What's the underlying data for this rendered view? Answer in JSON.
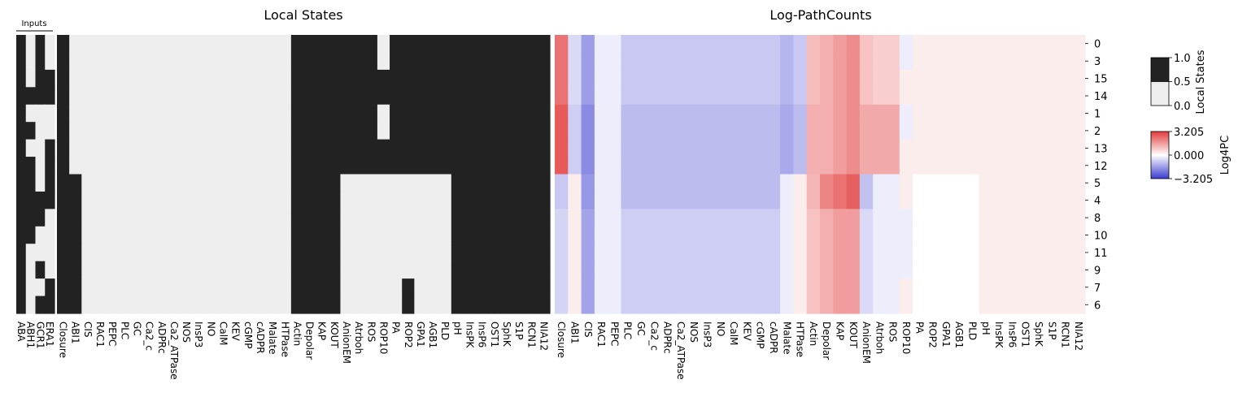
{
  "chart_data": [
    {
      "type": "heatmap",
      "title": "Local States",
      "inputs_label": "Inputs",
      "input_columns": [
        "ABA",
        "ABH1",
        "GCR1",
        "ERA1"
      ],
      "columns": [
        "Closure",
        "ABI1",
        "CIS",
        "RAC1",
        "PEPC",
        "PLC",
        "GC",
        "Ca2_c",
        "ADPRc",
        "Ca2_ATPase",
        "NOS",
        "InsP3",
        "NO",
        "CalM",
        "KEV",
        "cGMP",
        "cADPR",
        "Malate",
        "HTPase",
        "Actin",
        "Depolar",
        "KAP",
        "KOUT",
        "AnionEM",
        "Atrboh",
        "ROS",
        "ROP10",
        "PA",
        "ROP2",
        "GPA1",
        "AGB1",
        "PLD",
        "pH",
        "InsPK",
        "InsP6",
        "OST1",
        "SphK",
        "S1P",
        "RCN1",
        "NIA12"
      ],
      "rows": [
        "0",
        "3",
        "15",
        "14",
        "1",
        "2",
        "13",
        "12",
        "5",
        "4",
        "8",
        "10",
        "11",
        "9",
        "7",
        "6"
      ],
      "input_values": [
        [
          1,
          0,
          1,
          0
        ],
        [
          1,
          0,
          1,
          0
        ],
        [
          1,
          0,
          1,
          1
        ],
        [
          1,
          1,
          1,
          1
        ],
        [
          1,
          0,
          0,
          0
        ],
        [
          1,
          1,
          0,
          0
        ],
        [
          1,
          0,
          0,
          1
        ],
        [
          1,
          1,
          0,
          1
        ],
        [
          1,
          1,
          0,
          1
        ],
        [
          1,
          1,
          1,
          1
        ],
        [
          1,
          1,
          1,
          0
        ],
        [
          1,
          1,
          0,
          0
        ],
        [
          1,
          0,
          0,
          0
        ],
        [
          1,
          0,
          1,
          0
        ],
        [
          1,
          0,
          0,
          1
        ],
        [
          1,
          0,
          1,
          1
        ]
      ],
      "values": [
        [
          1,
          0,
          0,
          0,
          0,
          0,
          0,
          0,
          0,
          0,
          0,
          0,
          0,
          0,
          0,
          0,
          0,
          0,
          0,
          1,
          1,
          1,
          1,
          1,
          1,
          1,
          0,
          1,
          1,
          1,
          1,
          1,
          1,
          1,
          1,
          1,
          1,
          1,
          1,
          1
        ],
        [
          1,
          0,
          0,
          0,
          0,
          0,
          0,
          0,
          0,
          0,
          0,
          0,
          0,
          0,
          0,
          0,
          0,
          0,
          0,
          1,
          1,
          1,
          1,
          1,
          1,
          1,
          0,
          1,
          1,
          1,
          1,
          1,
          1,
          1,
          1,
          1,
          1,
          1,
          1,
          1
        ],
        [
          1,
          0,
          0,
          0,
          0,
          0,
          0,
          0,
          0,
          0,
          0,
          0,
          0,
          0,
          0,
          0,
          0,
          0,
          0,
          1,
          1,
          1,
          1,
          1,
          1,
          1,
          1,
          1,
          1,
          1,
          1,
          1,
          1,
          1,
          1,
          1,
          1,
          1,
          1,
          1
        ],
        [
          1,
          0,
          0,
          0,
          0,
          0,
          0,
          0,
          0,
          0,
          0,
          0,
          0,
          0,
          0,
          0,
          0,
          0,
          0,
          1,
          1,
          1,
          1,
          1,
          1,
          1,
          1,
          1,
          1,
          1,
          1,
          1,
          1,
          1,
          1,
          1,
          1,
          1,
          1,
          1
        ],
        [
          1,
          0,
          0,
          0,
          0,
          0,
          0,
          0,
          0,
          0,
          0,
          0,
          0,
          0,
          0,
          0,
          0,
          0,
          0,
          1,
          1,
          1,
          1,
          1,
          1,
          1,
          0,
          1,
          1,
          1,
          1,
          1,
          1,
          1,
          1,
          1,
          1,
          1,
          1,
          1
        ],
        [
          1,
          0,
          0,
          0,
          0,
          0,
          0,
          0,
          0,
          0,
          0,
          0,
          0,
          0,
          0,
          0,
          0,
          0,
          0,
          1,
          1,
          1,
          1,
          1,
          1,
          1,
          0,
          1,
          1,
          1,
          1,
          1,
          1,
          1,
          1,
          1,
          1,
          1,
          1,
          1
        ],
        [
          1,
          0,
          0,
          0,
          0,
          0,
          0,
          0,
          0,
          0,
          0,
          0,
          0,
          0,
          0,
          0,
          0,
          0,
          0,
          1,
          1,
          1,
          1,
          1,
          1,
          1,
          1,
          1,
          1,
          1,
          1,
          1,
          1,
          1,
          1,
          1,
          1,
          1,
          1,
          1
        ],
        [
          1,
          0,
          0,
          0,
          0,
          0,
          0,
          0,
          0,
          0,
          0,
          0,
          0,
          0,
          0,
          0,
          0,
          0,
          0,
          1,
          1,
          1,
          1,
          1,
          1,
          1,
          1,
          1,
          1,
          1,
          1,
          1,
          1,
          1,
          1,
          1,
          1,
          1,
          1,
          1
        ],
        [
          1,
          1,
          0,
          0,
          0,
          0,
          0,
          0,
          0,
          0,
          0,
          0,
          0,
          0,
          0,
          0,
          0,
          0,
          0,
          1,
          1,
          1,
          1,
          0,
          0,
          0,
          0,
          0,
          0,
          0,
          0,
          0,
          1,
          1,
          1,
          1,
          1,
          1,
          1,
          1
        ],
        [
          1,
          1,
          0,
          0,
          0,
          0,
          0,
          0,
          0,
          0,
          0,
          0,
          0,
          0,
          0,
          0,
          0,
          0,
          0,
          1,
          1,
          1,
          1,
          0,
          0,
          0,
          0,
          0,
          0,
          0,
          0,
          0,
          1,
          1,
          1,
          1,
          1,
          1,
          1,
          1
        ],
        [
          1,
          1,
          0,
          0,
          0,
          0,
          0,
          0,
          0,
          0,
          0,
          0,
          0,
          0,
          0,
          0,
          0,
          0,
          0,
          1,
          1,
          1,
          1,
          0,
          0,
          0,
          0,
          0,
          0,
          0,
          0,
          0,
          1,
          1,
          1,
          1,
          1,
          1,
          1,
          1
        ],
        [
          1,
          1,
          0,
          0,
          0,
          0,
          0,
          0,
          0,
          0,
          0,
          0,
          0,
          0,
          0,
          0,
          0,
          0,
          0,
          1,
          1,
          1,
          1,
          0,
          0,
          0,
          0,
          0,
          0,
          0,
          0,
          0,
          1,
          1,
          1,
          1,
          1,
          1,
          1,
          1
        ],
        [
          1,
          1,
          0,
          0,
          0,
          0,
          0,
          0,
          0,
          0,
          0,
          0,
          0,
          0,
          0,
          0,
          0,
          0,
          0,
          1,
          1,
          1,
          1,
          0,
          0,
          0,
          0,
          0,
          0,
          0,
          0,
          0,
          1,
          1,
          1,
          1,
          1,
          1,
          1,
          1
        ],
        [
          1,
          1,
          0,
          0,
          0,
          0,
          0,
          0,
          0,
          0,
          0,
          0,
          0,
          0,
          0,
          0,
          0,
          0,
          0,
          1,
          1,
          1,
          1,
          0,
          0,
          0,
          0,
          0,
          0,
          0,
          0,
          0,
          1,
          1,
          1,
          1,
          1,
          1,
          1,
          1
        ],
        [
          1,
          1,
          0,
          0,
          0,
          0,
          0,
          0,
          0,
          0,
          0,
          0,
          0,
          0,
          0,
          0,
          0,
          0,
          0,
          1,
          1,
          1,
          1,
          0,
          0,
          0,
          0,
          0,
          1,
          0,
          0,
          0,
          1,
          1,
          1,
          1,
          1,
          1,
          1,
          1
        ],
        [
          1,
          1,
          0,
          0,
          0,
          0,
          0,
          0,
          0,
          0,
          0,
          0,
          0,
          0,
          0,
          0,
          0,
          0,
          0,
          1,
          1,
          1,
          1,
          0,
          0,
          0,
          0,
          0,
          1,
          0,
          0,
          0,
          1,
          1,
          1,
          1,
          1,
          1,
          1,
          1
        ]
      ],
      "colorbar": {
        "label": "Local States",
        "ticks": [
          "1.0",
          "0.5",
          "0.0"
        ],
        "on_color": "#222222",
        "off_color": "#eeeeee"
      }
    },
    {
      "type": "heatmap",
      "title": "Log-PathCounts",
      "columns": [
        "Closure",
        "ABI1",
        "CIS",
        "RAC1",
        "PEPC",
        "PLC",
        "GC",
        "Ca2_c",
        "ADPRc",
        "Ca2_ATPase",
        "NOS",
        "InsP3",
        "NO",
        "CalM",
        "KEV",
        "cGMP",
        "cADPR",
        "Malate",
        "HTPase",
        "Actin",
        "Depolar",
        "KAP",
        "KOUT",
        "AnionEM",
        "Atrboh",
        "ROS",
        "ROP10",
        "PA",
        "ROP2",
        "GPA1",
        "AGB1",
        "PLD",
        "pH",
        "InsPK",
        "InsP6",
        "OST1",
        "SphK",
        "S1P",
        "RCN1",
        "NIA12"
      ],
      "rows": [
        "0",
        "3",
        "15",
        "14",
        "1",
        "2",
        "13",
        "12",
        "5",
        "4",
        "8",
        "10",
        "11",
        "9",
        "7",
        "6"
      ],
      "groups": [
        {
          "rows": [
            "0",
            "3",
            "15",
            "14"
          ],
          "values": [
            2.3,
            -0.6,
            -1.6,
            -0.3,
            -0.3,
            -0.9,
            -0.9,
            -0.9,
            -0.9,
            -0.9,
            -0.9,
            -0.9,
            -0.9,
            -0.9,
            -0.9,
            -0.9,
            -0.9,
            -1.2,
            -0.9,
            1.1,
            1.3,
            1.6,
            1.9,
            1.0,
            0.8,
            0.8,
            -0.3,
            0.3,
            0.3,
            0.3,
            0.3,
            0.3,
            0.3,
            0.3,
            0.3,
            0.3,
            0.3,
            0.3,
            0.3,
            0.3
          ]
        },
        {
          "rows": [
            "1",
            "2",
            "13",
            "12"
          ],
          "values": [
            2.7,
            -0.8,
            -1.9,
            -0.3,
            -0.3,
            -1.1,
            -1.1,
            -1.1,
            -1.1,
            -1.1,
            -1.1,
            -1.1,
            -1.1,
            -1.1,
            -1.1,
            -1.1,
            -1.1,
            -1.4,
            -1.1,
            1.3,
            1.3,
            1.6,
            1.9,
            1.4,
            1.4,
            1.4,
            -0.3,
            0.3,
            0.3,
            0.3,
            0.3,
            0.3,
            0.3,
            0.3,
            0.3,
            0.3,
            0.3,
            0.3,
            0.3,
            0.3
          ]
        },
        {
          "rows": [
            "5",
            "4"
          ],
          "values": [
            -0.9,
            0.3,
            -1.7,
            -0.3,
            -0.3,
            -1.1,
            -1.1,
            -1.1,
            -1.1,
            -1.1,
            -1.1,
            -1.1,
            -1.1,
            -1.1,
            -1.1,
            -1.1,
            -1.1,
            -0.3,
            0.3,
            1.2,
            2.0,
            2.3,
            2.6,
            -1.0,
            -0.3,
            -0.3,
            0.3,
            0.0,
            0.0,
            0.0,
            0.0,
            0.0,
            0.3,
            0.3,
            0.3,
            0.3,
            0.3,
            0.3,
            0.3,
            0.3
          ]
        },
        {
          "rows": [
            "8",
            "10",
            "11",
            "9",
            "7",
            "6"
          ],
          "values": [
            -0.7,
            0.3,
            -1.5,
            -0.3,
            -0.3,
            -0.8,
            -0.8,
            -0.8,
            -0.8,
            -0.8,
            -0.8,
            -0.8,
            -0.8,
            -0.8,
            -0.8,
            -0.8,
            -0.8,
            -0.3,
            0.3,
            1.0,
            1.3,
            1.6,
            1.6,
            -0.6,
            -0.3,
            -0.3,
            -0.3,
            0.0,
            0.0,
            0.0,
            0.0,
            0.0,
            0.3,
            0.3,
            0.3,
            0.3,
            0.3,
            0.3,
            0.3,
            0.3
          ]
        }
      ],
      "overrides": [
        {
          "row": "15",
          "column": "ROP10",
          "value": 0.3
        },
        {
          "row": "14",
          "column": "ROP10",
          "value": 0.3
        },
        {
          "row": "13",
          "column": "ROP10",
          "value": 0.3
        },
        {
          "row": "12",
          "column": "ROP10",
          "value": 0.3
        },
        {
          "row": "7",
          "column": "ROP10",
          "value": 0.3
        },
        {
          "row": "6",
          "column": "ROP10",
          "value": 0.3
        }
      ],
      "colorbar": {
        "label": "Log4PC",
        "ticks": [
          "3.205",
          "0.000",
          "−3.205"
        ],
        "vmin": -3.205,
        "vmax": 3.205,
        "low_color": "#3b3bd1",
        "mid_color": "#ffffff",
        "high_color": "#e23b3b"
      }
    }
  ]
}
